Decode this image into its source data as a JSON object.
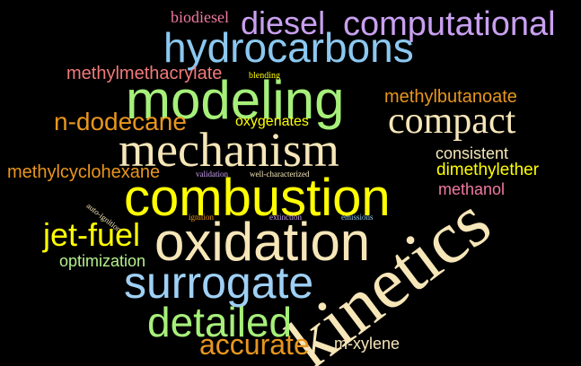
{
  "colors": {
    "background": "#000000",
    "yellow": "#ffff00",
    "lightyellow": "#f5dca0",
    "cream": "#f6e6b8",
    "orange": "#e8961e",
    "skyblue": "#8cc8f0",
    "lightblue": "#9fd0f5",
    "lavender": "#c9a0f0",
    "pink": "#f07aa0",
    "salmon": "#f27a7a",
    "green": "#a6f07a",
    "lightgreen": "#b4f08c"
  },
  "words": {
    "biodiesel": "biodiesel",
    "diesel": "diesel",
    "computational": "computational",
    "hydrocarbons": "hydrocarbons",
    "methylmethacrylate": "methylmethacrylate",
    "blending": "blending",
    "modeling": "modeling",
    "methylbutanoate": "methylbutanoate",
    "ndodecane": "n-dodecane",
    "oxygenates": "oxygenates",
    "compact": "compact",
    "mechanism": "mechanism",
    "consistent": "consistent",
    "methylcyclohexane": "methylcyclohexane",
    "validation": "validation",
    "wellcharacterized": "well-characterized",
    "dimethylether": "dimethylether",
    "combustion": "combustion",
    "methanol": "methanol",
    "autoignition": "auto-ignition",
    "ignition": "ignition",
    "extinction": "extinction",
    "emissions": "emissions",
    "jetfuel": "jet-fuel",
    "oxidation": "oxidation",
    "kinetics": "kinetics",
    "optimization": "optimization",
    "surrogate": "surrogate",
    "detailed": "detailed",
    "accurate": "accurate",
    "mxylene": "m-xylene"
  }
}
